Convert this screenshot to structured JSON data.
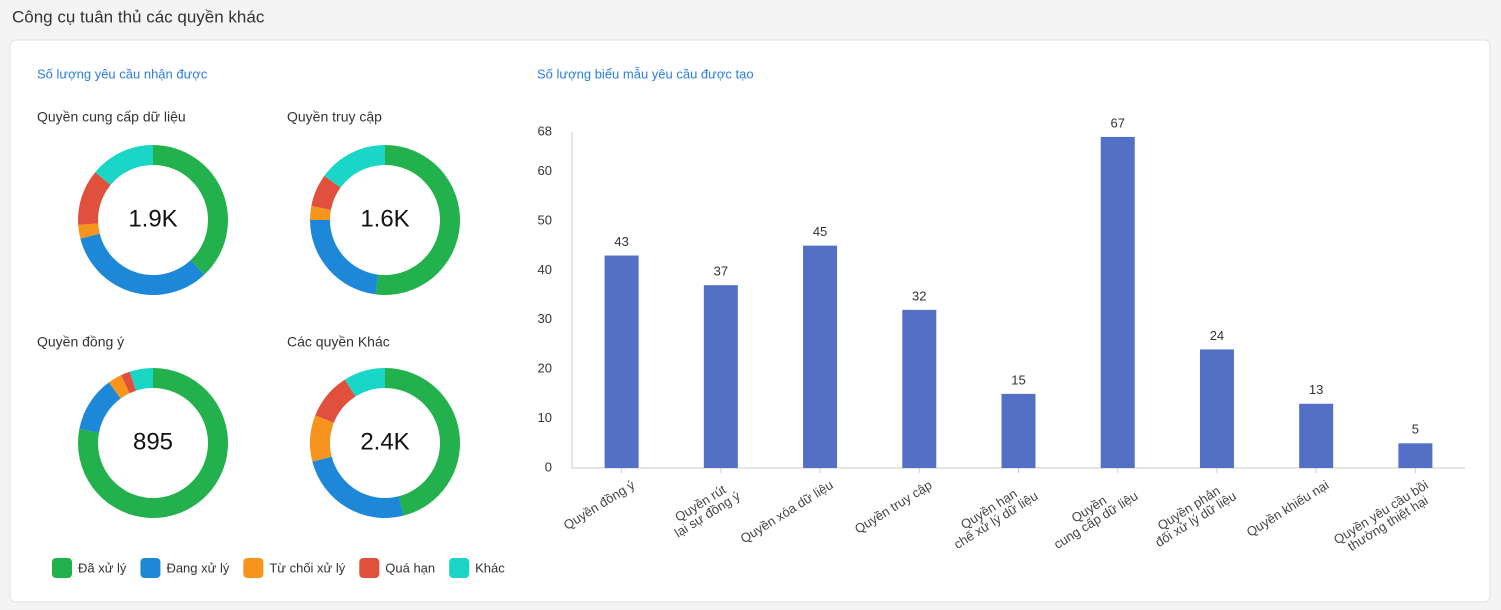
{
  "page_title": "Công cụ tuân thủ các quyền khác",
  "chart_data": [
    {
      "type": "donut",
      "title": "Số lượng yêu cầu nhận được",
      "categories": [
        "Đã xử lý",
        "Đang xử lý",
        "Từ chối xử lý",
        "Quá hạn",
        "Khác"
      ],
      "colors": [
        "#22b14c",
        "#1e88d8",
        "#f7941d",
        "#e0503c",
        "#1ad6c6"
      ],
      "series": [
        {
          "name": "Quyền cung cấp dữ liệu",
          "center_label": "1.9K",
          "values": [
            38,
            33,
            3,
            12,
            14
          ]
        },
        {
          "name": "Quyền truy cập",
          "center_label": "1.6K",
          "values": [
            52,
            23,
            3,
            7,
            15
          ]
        },
        {
          "name": "Quyền đồng ý",
          "center_label": "895",
          "values": [
            78,
            12,
            3,
            2,
            5
          ]
        },
        {
          "name": "Các quyền Khác",
          "center_label": "2.4K",
          "values": [
            46,
            25,
            10,
            10,
            9
          ]
        }
      ]
    },
    {
      "type": "bar",
      "title": "Số lượng biểu mẫu yêu cầu được tạo",
      "categories": [
        "Quyền đồng ý",
        "Quyền rút\nlại sự đồng ý",
        "Quyền xóa dữ liệu",
        "Quyền truy cập",
        "Quyền hạn\nchế xử lý dữ liệu",
        "Quyền\ncung cấp dữ liệu",
        "Quyền phản\nđối xử lý dữ liệu",
        "Quyền khiếu nại",
        "Quyền yêu cầu bồi\nthường thiệt hại"
      ],
      "values": [
        43,
        37,
        45,
        32,
        15,
        67,
        24,
        13,
        5
      ],
      "color": "#5470c6",
      "ylim": [
        0,
        68
      ],
      "yticks": [
        0,
        10,
        20,
        30,
        40,
        50,
        60,
        68
      ]
    }
  ]
}
